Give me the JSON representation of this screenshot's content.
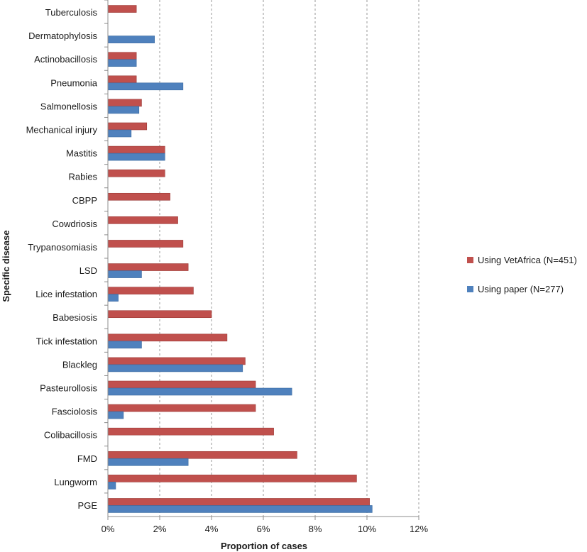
{
  "chart_data": {
    "type": "bar",
    "orientation": "horizontal",
    "xlabel": "Proportion of cases",
    "ylabel": "Specific disease",
    "xlim": [
      0,
      12
    ],
    "xticks": [
      "0%",
      "2%",
      "4%",
      "6%",
      "8%",
      "10%",
      "12%"
    ],
    "grid": true,
    "legend_position": "right",
    "categories": [
      "Tuberculosis",
      "Dermatophylosis",
      "Actinobacillosis",
      "Pneumonia",
      "Salmonellosis",
      "Mechanical injury",
      "Mastitis",
      "Rabies",
      "CBPP",
      "Cowdriosis",
      "Trypanosomiasis",
      "LSD",
      "Lice infestation",
      "Babesiosis",
      "Tick infestation",
      "Blackleg",
      "Pasteurollosis",
      "Fasciolosis",
      "Colibacillosis",
      "FMD",
      "Lungworm",
      "PGE"
    ],
    "series": [
      {
        "name": "Using VetAfrica (N=451)",
        "color": "#c0504d",
        "values": [
          1.1,
          0,
          1.1,
          1.1,
          1.3,
          1.5,
          2.2,
          2.2,
          2.4,
          2.7,
          2.9,
          3.1,
          3.3,
          4.0,
          4.6,
          5.3,
          5.7,
          5.7,
          6.4,
          7.3,
          9.6,
          10.1
        ]
      },
      {
        "name": "Using paper (N=277)",
        "color": "#4f81bd",
        "values": [
          0,
          1.8,
          1.1,
          2.9,
          1.2,
          0.9,
          2.2,
          0,
          0,
          0,
          0,
          1.3,
          0.4,
          0,
          1.3,
          5.2,
          7.1,
          0.6,
          0,
          3.1,
          0.3,
          10.2
        ]
      }
    ]
  }
}
